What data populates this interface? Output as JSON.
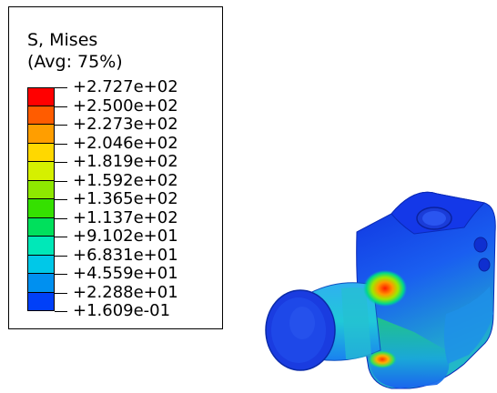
{
  "legend": {
    "title": "S, Mises",
    "subtitle": "(Avg: 75%)",
    "labels": [
      "+2.727e+02",
      "+2.500e+02",
      "+2.273e+02",
      "+2.046e+02",
      "+1.819e+02",
      "+1.592e+02",
      "+1.365e+02",
      "+1.137e+02",
      "+9.102e+01",
      "+6.831e+01",
      "+4.559e+01",
      "+2.288e+01",
      "+1.609e-01"
    ],
    "band_colors": [
      "#ff0000",
      "#ff5c00",
      "#ff9e00",
      "#ffd800",
      "#d5f000",
      "#8ee800",
      "#35e000",
      "#00e05c",
      "#00e8b8",
      "#00c8e8",
      "#0090f0",
      "#0040f8"
    ]
  },
  "colors": {
    "background": "#ffffff",
    "part_blue": "#1f3ee6",
    "part_green": "#1fcf7a",
    "hotspot_red": "#ff2a00"
  }
}
